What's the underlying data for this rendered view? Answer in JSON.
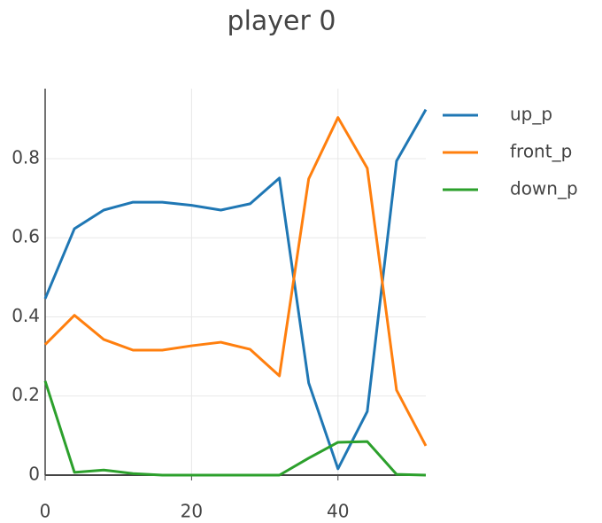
{
  "chart_data": {
    "type": "line",
    "title": "player 0",
    "x": [
      0,
      4,
      8,
      12,
      16,
      20,
      24,
      28,
      32,
      36,
      40,
      44,
      48,
      52
    ],
    "series": [
      {
        "name": "up_p",
        "color": "#1f77b4",
        "values": [
          0.446,
          0.623,
          0.67,
          0.69,
          0.69,
          0.682,
          0.67,
          0.686,
          0.751,
          0.233,
          0.016,
          0.161,
          0.794,
          0.924
        ]
      },
      {
        "name": "front_p",
        "color": "#ff7f0e",
        "values": [
          0.33,
          0.404,
          0.343,
          0.316,
          0.316,
          0.327,
          0.336,
          0.318,
          0.251,
          0.749,
          0.904,
          0.776,
          0.215,
          0.074
        ]
      },
      {
        "name": "down_p",
        "color": "#2ca02c",
        "values": [
          0.238,
          0.007,
          0.013,
          0.004,
          0,
          0,
          0,
          0,
          0,
          0.043,
          0.083,
          0.085,
          0.002,
          0
        ]
      }
    ],
    "xlim": [
      0,
      52
    ],
    "ylim": [
      0,
      0.977
    ],
    "xticks": [
      0,
      20,
      40
    ],
    "yticks": [
      0,
      0.2,
      0.4,
      0.6,
      0.8
    ],
    "grid": true
  }
}
